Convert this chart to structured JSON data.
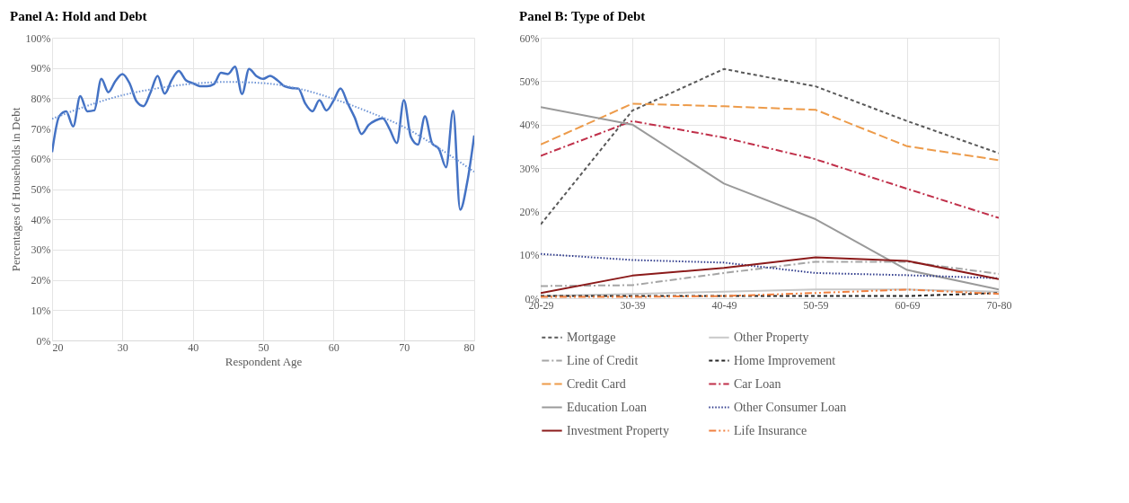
{
  "chart_data": [
    {
      "type": "line",
      "title": "Panel A: Hold and Debt",
      "xlabel": "Respondent Age",
      "ylabel": "Percentages of Households in Debt",
      "xlim": [
        20,
        80
      ],
      "xticks": [
        20,
        30,
        40,
        50,
        60,
        70,
        80
      ],
      "ylim": [
        0,
        100
      ],
      "yticks": [
        {
          "value": 0,
          "label": "0%"
        },
        {
          "value": 10,
          "label": "10%"
        },
        {
          "value": 20,
          "label": "20%"
        },
        {
          "value": 30,
          "label": "30%"
        },
        {
          "value": 40,
          "label": "40%"
        },
        {
          "value": 50,
          "label": "50%"
        },
        {
          "value": 60,
          "label": "60%"
        },
        {
          "value": 70,
          "label": "70%"
        },
        {
          "value": 80,
          "label": "80%"
        },
        {
          "value": 90,
          "label": "90%"
        },
        {
          "value": 100,
          "label": "100%"
        }
      ],
      "grid": true,
      "x": [
        20,
        21,
        22,
        23,
        24,
        25,
        26,
        27,
        28,
        29,
        30,
        31,
        32,
        33,
        34,
        35,
        36,
        37,
        38,
        39,
        40,
        41,
        42,
        43,
        44,
        45,
        46,
        47,
        48,
        49,
        50,
        51,
        52,
        53,
        54,
        55,
        56,
        57,
        58,
        59,
        60,
        61,
        62,
        63,
        64,
        65,
        66,
        67,
        68,
        69,
        70,
        71,
        72,
        73,
        74,
        75,
        76,
        77,
        78,
        79,
        80
      ],
      "series": [
        {
          "color": "#4472c4",
          "line_style": "solid",
          "values": [
            62.2,
            74,
            75.7,
            70.7,
            80.7,
            75.7,
            76,
            86.4,
            82,
            85.7,
            88,
            85,
            79,
            77.4,
            82,
            87.4,
            81.5,
            86,
            89,
            86,
            85,
            84,
            84,
            84.7,
            88.4,
            88,
            90.4,
            81.4,
            89.7,
            87.4,
            86.4,
            87.4,
            86,
            84,
            83.4,
            83.2,
            78.2,
            75.7,
            79.4,
            76,
            79.2,
            83.2,
            78.4,
            73.7,
            68.2,
            71.2,
            72.7,
            73.4,
            69.7,
            65.2,
            79.4,
            67.2,
            64.7,
            74,
            65.2,
            63.2,
            57.2,
            75.9,
            43.2,
            52.2,
            67.7
          ]
        },
        {
          "type": "line",
          "color": "#6f95d6",
          "line_style": "dotted",
          "x": [
            20,
            25,
            30,
            35,
            40,
            45,
            50,
            55,
            60,
            65,
            70,
            75,
            80
          ],
          "values": [
            73.2,
            77.5,
            81,
            83.3,
            84.8,
            85.4,
            85,
            83.2,
            79.8,
            75.5,
            70.5,
            63.5,
            55.7
          ]
        }
      ]
    },
    {
      "type": "line",
      "title": "Panel B: Type of Debt",
      "categories": [
        "20-29",
        "30-39",
        "40-49",
        "50-59",
        "60-69",
        "70-80"
      ],
      "ylim": [
        0,
        60
      ],
      "yticks": [
        {
          "value": 0,
          "label": "0%"
        },
        {
          "value": 10,
          "label": "10%"
        },
        {
          "value": 20,
          "label": "20%"
        },
        {
          "value": 30,
          "label": "30%"
        },
        {
          "value": 40,
          "label": "40%"
        },
        {
          "value": 50,
          "label": "50%"
        },
        {
          "value": 60,
          "label": "60%"
        }
      ],
      "grid": true,
      "legend": "bottom",
      "series": [
        {
          "name": "Mortgage",
          "color": "#595959",
          "line_style": "dashed",
          "values": [
            17,
            43.2,
            52.8,
            48.8,
            40.8,
            33.4
          ]
        },
        {
          "name": "Other Property",
          "color": "#c8c8c8",
          "line_style": "solid",
          "values": [
            0.5,
            1,
            1.5,
            2,
            2,
            1.5
          ]
        },
        {
          "name": "Line of Credit",
          "color": "#a5a5a5",
          "line_style": "dashdot",
          "values": [
            2.8,
            3,
            5.8,
            8.4,
            8.4,
            5.6
          ]
        },
        {
          "name": "Home Improvement",
          "color": "#262626",
          "line_style": "dashed",
          "values": [
            0.5,
            0.5,
            0.5,
            0.5,
            0.5,
            1.2
          ]
        },
        {
          "name": "Credit Card",
          "color": "#ed9b4a",
          "line_style": "longdash",
          "values": [
            35.4,
            44.8,
            44.2,
            43.4,
            35,
            31.8
          ]
        },
        {
          "name": "Car Loan",
          "color": "#c0304a",
          "line_style": "dashdot",
          "values": [
            32.8,
            40.8,
            37,
            32,
            25.2,
            18.5
          ]
        },
        {
          "name": "Education Loan",
          "color": "#9a9a9a",
          "line_style": "solid",
          "values": [
            44,
            40,
            26.4,
            18.2,
            6.5,
            2
          ]
        },
        {
          "name": "Other Consumer Loan",
          "color": "#2f3b8c",
          "line_style": "dotted",
          "values": [
            10.2,
            8.8,
            8.2,
            5.8,
            5.3,
            4.6
          ]
        },
        {
          "name": "Investment Property",
          "color": "#8b1a1a",
          "line_style": "solid",
          "values": [
            1.2,
            5.2,
            7,
            9.4,
            8.6,
            4.4
          ]
        },
        {
          "name": "Life Insurance",
          "color": "#f08040",
          "line_style": "dashdotdot",
          "values": [
            0.3,
            0.3,
            0.5,
            1.2,
            2,
            1
          ]
        }
      ]
    }
  ]
}
